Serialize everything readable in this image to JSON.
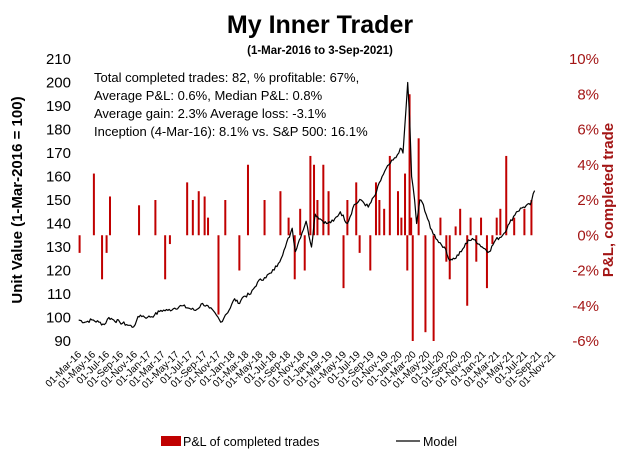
{
  "chart_data": {
    "type": "bar+line",
    "title": "My Inner Trader",
    "subtitle": "(1-Mar-2016 to 3-Sep-2021)",
    "ylabel_left": "Unit Value (1-Mar-2016 = 100)",
    "ylabel_right": "P&L, completed trade",
    "ylim_left": [
      90,
      210
    ],
    "yticks_left": [
      "90",
      "100",
      "110",
      "120",
      "130",
      "140",
      "150",
      "160",
      "170",
      "180",
      "190",
      "200",
      "210"
    ],
    "ylim_right": [
      -0.06,
      0.1
    ],
    "yticks_right": [
      "-6%",
      "-4%",
      "-2%",
      "0%",
      "2%",
      "4%",
      "6%",
      "8%",
      "10%"
    ],
    "x_axis": {
      "start": "2016-03-01",
      "end": "2021-11-01",
      "tick_labels": [
        "01-Mar-16",
        "01-May-16",
        "01-Jul-16",
        "01-Sep-16",
        "01-Nov-16",
        "01-Jan-17",
        "01-Mar-17",
        "01-May-17",
        "01-Jul-17",
        "01-Sep-17",
        "01-Nov-17",
        "01-Jan-18",
        "01-Mar-18",
        "01-May-18",
        "01-Jul-18",
        "01-Sep-18",
        "01-Nov-18",
        "01-Jan-19",
        "01-Mar-19",
        "01-May-19",
        "01-Jul-19",
        "01-Sep-19",
        "01-Nov-19",
        "01-Jan-20",
        "01-Mar-20",
        "01-May-20",
        "01-Jul-20",
        "01-Sep-20",
        "01-Nov-20",
        "01-Jan-21",
        "01-Mar-21",
        "01-May-21",
        "01-Jul-21",
        "01-Sep-21",
        "01-Nov-21"
      ]
    },
    "annotations": [
      "Total completed trades: 82, % profitable: 67%,",
      "Average P&L: 0.6%, Median P&L: 0.8%",
      "Average gain: 2.3% Average loss: -3.1%",
      "Inception (4-Mar-16): 8.1% vs. S&P 500: 16.1%"
    ],
    "legend": {
      "position": "bottom",
      "bars": "P&L of completed trades",
      "line": "Model"
    },
    "colors": {
      "bars": "#c00000",
      "line": "#000000",
      "right_axis": "#a31515"
    },
    "series": [
      {
        "name": "Model",
        "kind": "line",
        "axis": "left",
        "points": [
          [
            "2016-03-04",
            99
          ],
          [
            "2016-04-01",
            98
          ],
          [
            "2016-05-01",
            99
          ],
          [
            "2016-06-01",
            98
          ],
          [
            "2016-06-25",
            97
          ],
          [
            "2016-07-15",
            100
          ],
          [
            "2016-08-05",
            99
          ],
          [
            "2016-09-01",
            98
          ],
          [
            "2016-10-01",
            97
          ],
          [
            "2016-11-01",
            96
          ],
          [
            "2016-11-15",
            99
          ],
          [
            "2016-12-01",
            101
          ],
          [
            "2017-01-01",
            100
          ],
          [
            "2017-02-01",
            101
          ],
          [
            "2017-03-01",
            103
          ],
          [
            "2017-04-01",
            103
          ],
          [
            "2017-05-01",
            104
          ],
          [
            "2017-06-01",
            105
          ],
          [
            "2017-07-01",
            104
          ],
          [
            "2017-08-01",
            103
          ],
          [
            "2017-09-01",
            106
          ],
          [
            "2017-10-01",
            104
          ],
          [
            "2017-11-01",
            101
          ],
          [
            "2017-11-20",
            98
          ],
          [
            "2017-12-10",
            101
          ],
          [
            "2018-01-01",
            104
          ],
          [
            "2018-01-20",
            108
          ],
          [
            "2018-02-05",
            106
          ],
          [
            "2018-03-01",
            109
          ],
          [
            "2018-04-01",
            110
          ],
          [
            "2018-05-01",
            115
          ],
          [
            "2018-06-01",
            117
          ],
          [
            "2018-07-01",
            119
          ],
          [
            "2018-08-01",
            123
          ],
          [
            "2018-09-01",
            130
          ],
          [
            "2018-10-01",
            138
          ],
          [
            "2018-10-15",
            128
          ],
          [
            "2018-11-01",
            133
          ],
          [
            "2018-12-01",
            141
          ],
          [
            "2018-12-25",
            130
          ],
          [
            "2019-01-10",
            144
          ],
          [
            "2019-02-01",
            142
          ],
          [
            "2019-03-01",
            140
          ],
          [
            "2019-04-01",
            141
          ],
          [
            "2019-05-01",
            145
          ],
          [
            "2019-06-01",
            140
          ],
          [
            "2019-07-01",
            148
          ],
          [
            "2019-08-01",
            150
          ],
          [
            "2019-09-01",
            147
          ],
          [
            "2019-10-01",
            152
          ],
          [
            "2019-11-01",
            160
          ],
          [
            "2019-12-01",
            165
          ],
          [
            "2020-01-01",
            168
          ],
          [
            "2020-01-20",
            172
          ],
          [
            "2020-02-01",
            170
          ],
          [
            "2020-02-15",
            190
          ],
          [
            "2020-02-22",
            200
          ],
          [
            "2020-03-01",
            185
          ],
          [
            "2020-03-10",
            160
          ],
          [
            "2020-03-23",
            150
          ],
          [
            "2020-04-01",
            140
          ],
          [
            "2020-04-15",
            150
          ],
          [
            "2020-05-01",
            148
          ],
          [
            "2020-06-01",
            138
          ],
          [
            "2020-07-01",
            133
          ],
          [
            "2020-08-01",
            130
          ],
          [
            "2020-08-20",
            125
          ],
          [
            "2020-09-15",
            125
          ],
          [
            "2020-10-15",
            128
          ],
          [
            "2020-11-15",
            133
          ],
          [
            "2020-12-15",
            133
          ],
          [
            "2021-01-15",
            130
          ],
          [
            "2021-02-15",
            128
          ],
          [
            "2021-03-15",
            133
          ],
          [
            "2021-04-15",
            135
          ],
          [
            "2021-05-15",
            140
          ],
          [
            "2021-06-15",
            145
          ],
          [
            "2021-07-15",
            147
          ],
          [
            "2021-08-15",
            148
          ],
          [
            "2021-09-03",
            154
          ]
        ]
      },
      {
        "name": "P&L of completed trades",
        "kind": "bar",
        "axis": "right",
        "points": [
          [
            "2016-03-08",
            -0.01
          ],
          [
            "2016-05-10",
            0.035
          ],
          [
            "2016-06-15",
            -0.025
          ],
          [
            "2016-07-05",
            -0.01
          ],
          [
            "2016-07-20",
            0.022
          ],
          [
            "2016-11-25",
            0.017
          ],
          [
            "2017-02-05",
            0.02
          ],
          [
            "2017-03-20",
            -0.025
          ],
          [
            "2017-04-10",
            -0.005
          ],
          [
            "2017-06-25",
            0.03
          ],
          [
            "2017-07-20",
            0.02
          ],
          [
            "2017-08-15",
            0.025
          ],
          [
            "2017-09-10",
            0.022
          ],
          [
            "2017-09-25",
            0.01
          ],
          [
            "2017-11-10",
            -0.045
          ],
          [
            "2017-12-10",
            0.02
          ],
          [
            "2018-02-10",
            -0.02
          ],
          [
            "2018-03-20",
            0.04
          ],
          [
            "2018-06-01",
            0.02
          ],
          [
            "2018-08-10",
            0.025
          ],
          [
            "2018-09-15",
            0.01
          ],
          [
            "2018-10-12",
            -0.025
          ],
          [
            "2018-11-05",
            0.015
          ],
          [
            "2018-11-25",
            -0.02
          ],
          [
            "2018-12-20",
            0.045
          ],
          [
            "2019-01-05",
            0.04
          ],
          [
            "2019-01-20",
            0.02
          ],
          [
            "2019-02-15",
            0.04
          ],
          [
            "2019-03-10",
            0.025
          ],
          [
            "2019-05-15",
            -0.03
          ],
          [
            "2019-06-01",
            0.02
          ],
          [
            "2019-07-10",
            0.03
          ],
          [
            "2019-07-25",
            -0.01
          ],
          [
            "2019-09-10",
            -0.02
          ],
          [
            "2019-10-05",
            0.03
          ],
          [
            "2019-10-20",
            0.02
          ],
          [
            "2019-11-10",
            0.015
          ],
          [
            "2019-12-05",
            0.045
          ],
          [
            "2020-01-10",
            0.025
          ],
          [
            "2020-01-25",
            0.01
          ],
          [
            "2020-02-10",
            0.035
          ],
          [
            "2020-02-20",
            -0.02
          ],
          [
            "2020-03-01",
            0.08
          ],
          [
            "2020-03-08",
            0.01
          ],
          [
            "2020-03-15",
            -0.06
          ],
          [
            "2020-04-10",
            0.055
          ],
          [
            "2020-05-10",
            -0.055
          ],
          [
            "2020-06-15",
            -0.06
          ],
          [
            "2020-07-15",
            0.01
          ],
          [
            "2020-08-10",
            -0.015
          ],
          [
            "2020-08-25",
            -0.025
          ],
          [
            "2020-09-20",
            0.005
          ],
          [
            "2020-10-10",
            0.015
          ],
          [
            "2020-11-10",
            -0.04
          ],
          [
            "2020-11-25",
            0.01
          ],
          [
            "2020-12-20",
            -0.015
          ],
          [
            "2021-01-10",
            0.01
          ],
          [
            "2021-02-05",
            -0.03
          ],
          [
            "2021-03-01",
            -0.005
          ],
          [
            "2021-03-20",
            0.01
          ],
          [
            "2021-04-05",
            0.015
          ],
          [
            "2021-05-01",
            0.045
          ],
          [
            "2021-06-05",
            0.01
          ],
          [
            "2021-07-20",
            0.015
          ],
          [
            "2021-08-20",
            0.02
          ]
        ]
      }
    ]
  }
}
